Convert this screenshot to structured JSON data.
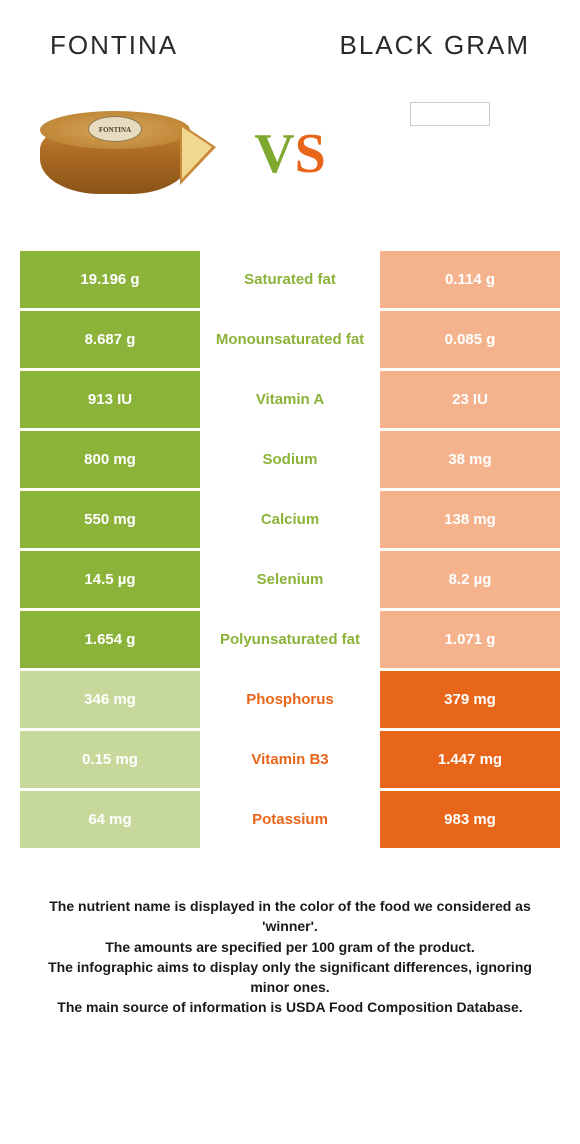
{
  "header": {
    "left_title": "Fontina",
    "right_title": "Black gram"
  },
  "vs": {
    "v": "V",
    "s": "S"
  },
  "colors": {
    "green_winner": "#8bb339",
    "orange_winner": "#e8661a",
    "green_loser_bg": "#c6d99a",
    "orange_loser_bg": "#f4b38c",
    "white": "#ffffff"
  },
  "rows": [
    {
      "left": "19.196 g",
      "label": "Saturated fat",
      "right": "0.114 g",
      "winner": "left"
    },
    {
      "left": "8.687 g",
      "label": "Monounsaturated fat",
      "right": "0.085 g",
      "winner": "left"
    },
    {
      "left": "913 IU",
      "label": "Vitamin A",
      "right": "23 IU",
      "winner": "left"
    },
    {
      "left": "800 mg",
      "label": "Sodium",
      "right": "38 mg",
      "winner": "left"
    },
    {
      "left": "550 mg",
      "label": "Calcium",
      "right": "138 mg",
      "winner": "left"
    },
    {
      "left": "14.5 µg",
      "label": "Selenium",
      "right": "8.2 µg",
      "winner": "left"
    },
    {
      "left": "1.654 g",
      "label": "Polyunsaturated fat",
      "right": "1.071 g",
      "winner": "left"
    },
    {
      "left": "346 mg",
      "label": "Phosphorus",
      "right": "379 mg",
      "winner": "right"
    },
    {
      "left": "0.15 mg",
      "label": "Vitamin B3",
      "right": "1.447 mg",
      "winner": "right"
    },
    {
      "left": "64 mg",
      "label": "Potassium",
      "right": "983 mg",
      "winner": "right"
    }
  ],
  "footer": {
    "line1": "The nutrient name is displayed in the color of the food we considered as 'winner'.",
    "line2": "The amounts are specified per 100 gram of the product.",
    "line3": "The infographic aims to display only the significant differences, ignoring minor ones.",
    "line4": "The main source of information is USDA Food Composition Database."
  },
  "cheese_label": "FONTINA"
}
